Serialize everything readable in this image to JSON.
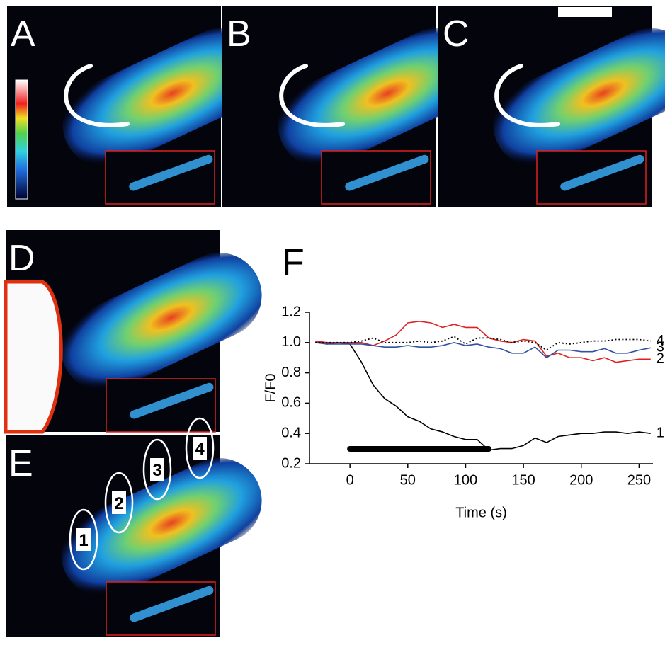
{
  "panel_labels": [
    "A",
    "B",
    "C",
    "D",
    "E"
  ],
  "roi_labels": [
    "1",
    "2",
    "3",
    "4"
  ],
  "chart_data": {
    "type": "line",
    "title": "F",
    "x_label": "Time (s)",
    "y_label": "F/F0",
    "x": [
      -30,
      -20,
      -10,
      0,
      10,
      20,
      30,
      40,
      50,
      60,
      70,
      80,
      90,
      100,
      110,
      120,
      130,
      140,
      150,
      160,
      170,
      180,
      190,
      200,
      210,
      220,
      230,
      240,
      250,
      260
    ],
    "series": [
      {
        "name": "1",
        "color": "#000000",
        "dash": "solid",
        "values": [
          1.01,
          0.99,
          1.0,
          0.99,
          0.87,
          0.72,
          0.63,
          0.58,
          0.51,
          0.48,
          0.43,
          0.41,
          0.38,
          0.36,
          0.36,
          0.29,
          0.3,
          0.3,
          0.32,
          0.37,
          0.34,
          0.38,
          0.39,
          0.4,
          0.4,
          0.41,
          0.41,
          0.4,
          0.41,
          0.4
        ]
      },
      {
        "name": "2",
        "color": "#e02020",
        "dash": "solid",
        "values": [
          1.01,
          1.0,
          1.0,
          1.0,
          1.0,
          0.98,
          1.01,
          1.05,
          1.13,
          1.14,
          1.13,
          1.1,
          1.12,
          1.1,
          1.1,
          1.03,
          1.01,
          1.0,
          1.02,
          1.01,
          0.91,
          0.93,
          0.9,
          0.9,
          0.88,
          0.9,
          0.87,
          0.88,
          0.89,
          0.89
        ]
      },
      {
        "name": "3",
        "color": "#3050a0",
        "dash": "solid",
        "values": [
          1.0,
          0.99,
          0.99,
          0.99,
          0.99,
          0.98,
          0.97,
          0.97,
          0.98,
          0.97,
          0.97,
          0.98,
          1.0,
          0.98,
          0.99,
          0.97,
          0.96,
          0.93,
          0.93,
          0.97,
          0.9,
          0.95,
          0.95,
          0.94,
          0.94,
          0.96,
          0.93,
          0.93,
          0.95,
          0.965
        ]
      },
      {
        "name": "4",
        "color": "#000000",
        "dash": "dotted",
        "values": [
          1.0,
          1.0,
          1.0,
          1.0,
          1.01,
          1.03,
          1.0,
          1.0,
          1.0,
          1.01,
          1.0,
          1.01,
          1.04,
          0.99,
          1.03,
          1.03,
          1.02,
          1.0,
          1.01,
          1.0,
          0.95,
          1.0,
          0.99,
          1.0,
          1.01,
          1.01,
          1.02,
          1.02,
          1.02,
          1.01
        ]
      }
    ],
    "stimulus_bar": [
      0,
      120
    ],
    "xlim": [
      -35,
      262
    ],
    "xticks": [
      0,
      50,
      100,
      150,
      200,
      250
    ],
    "ylim": [
      0.2,
      1.2
    ],
    "yticks": [
      0.2,
      0.4,
      0.6,
      0.8,
      {
        "value": 1,
        "label": "1.0"
      },
      1.2
    ]
  }
}
